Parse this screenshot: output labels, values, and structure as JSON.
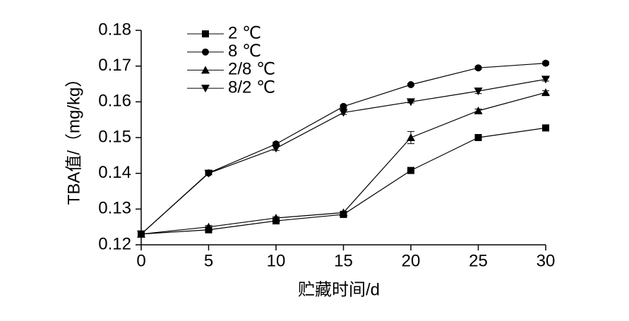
{
  "chart_data": {
    "type": "line",
    "x_label": "贮藏时间/d",
    "y_label": "TBA值/（mg/kg）",
    "x": [
      0,
      5,
      10,
      15,
      20,
      25,
      30
    ],
    "xlim": [
      0,
      30
    ],
    "xticks": [
      0,
      5,
      10,
      15,
      20,
      25,
      30
    ],
    "ylim": [
      0.12,
      0.18
    ],
    "yticks": [
      0.12,
      0.13,
      0.14,
      0.15,
      0.16,
      0.17,
      0.18
    ],
    "legend": "upper left",
    "series": [
      {
        "name": "2 ℃",
        "color": "#000000",
        "marker": "square",
        "values": [
          0.123,
          0.1242,
          0.1267,
          0.1285,
          0.1408,
          0.15,
          0.1527
        ],
        "errors": [
          0.0005,
          0.0005,
          0.0005,
          0.0005,
          0.0007,
          0.0004,
          0.0004
        ]
      },
      {
        "name": "8 ℃",
        "color": "#000000",
        "marker": "circle",
        "values": [
          0.123,
          0.1401,
          0.1482,
          0.1587,
          0.1648,
          0.1695,
          0.1708
        ],
        "errors": [
          0.0005,
          0.0004,
          0.0005,
          0.0004,
          0.0003,
          0.0004,
          0.0004
        ]
      },
      {
        "name": "2/8 ℃",
        "color": "#000000",
        "marker": "triangle-up",
        "values": [
          0.123,
          0.125,
          0.1275,
          0.129,
          0.15,
          0.1575,
          0.1626
        ],
        "errors": [
          0.0005,
          0.0004,
          0.0004,
          0.0004,
          0.0017,
          0.0005,
          0.0005
        ]
      },
      {
        "name": "8/2 ℃",
        "color": "#000000",
        "marker": "triangle-down",
        "values": [
          0.123,
          0.14,
          0.147,
          0.157,
          0.16,
          0.163,
          0.1663
        ],
        "errors": [
          0.0005,
          0.0004,
          0.0006,
          0.0005,
          0.0003,
          0.0007,
          0.0005
        ]
      }
    ]
  }
}
